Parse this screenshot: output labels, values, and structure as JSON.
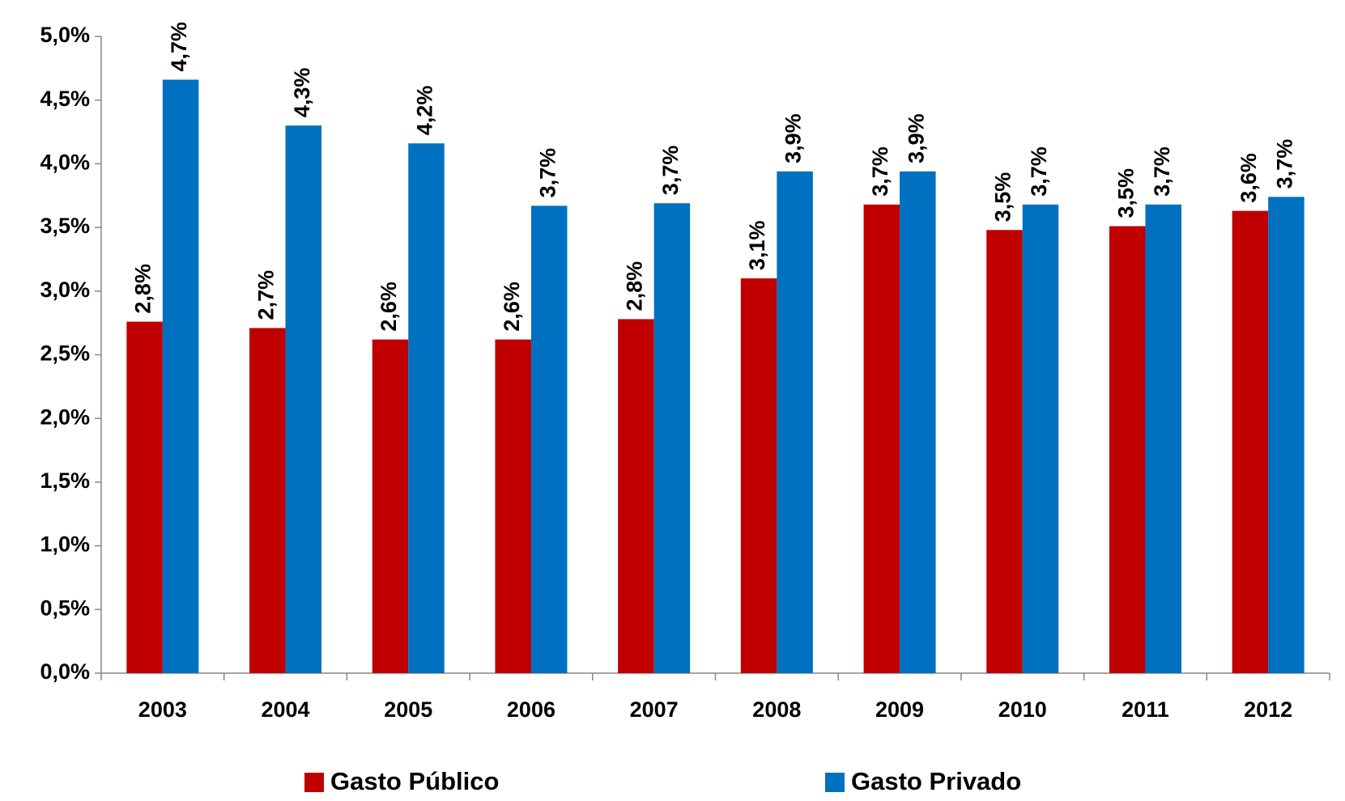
{
  "chart_data": {
    "type": "bar",
    "categories": [
      "2003",
      "2004",
      "2005",
      "2006",
      "2007",
      "2008",
      "2009",
      "2010",
      "2011",
      "2012"
    ],
    "series": [
      {
        "name": "Gasto Público",
        "color": "#c00000",
        "values": [
          2.76,
          2.71,
          2.62,
          2.62,
          2.78,
          3.1,
          3.68,
          3.48,
          3.51,
          3.63
        ],
        "value_labels": [
          "2,8%",
          "2,7%",
          "2,6%",
          "2,6%",
          "2,8%",
          "3,1%",
          "3,7%",
          "3,5%",
          "3,5%",
          "3,6%"
        ]
      },
      {
        "name": "Gasto Privado",
        "color": "#0070c0",
        "values": [
          4.66,
          4.3,
          4.16,
          3.67,
          3.69,
          3.94,
          3.94,
          3.68,
          3.68,
          3.74
        ],
        "value_labels": [
          "4,7%",
          "4,3%",
          "4,2%",
          "3,7%",
          "3,7%",
          "3,9%",
          "3,9%",
          "3,7%",
          "3,7%",
          "3,7%"
        ]
      }
    ],
    "ylim": [
      0,
      5
    ],
    "yticks": [
      {
        "value": 0,
        "label": "0,0%"
      },
      {
        "value": 0.5,
        "label": "0,5%"
      },
      {
        "value": 1,
        "label": "1,0%"
      },
      {
        "value": 1.5,
        "label": "1,5%"
      },
      {
        "value": 2,
        "label": "2,0%"
      },
      {
        "value": 2.5,
        "label": "2,5%"
      },
      {
        "value": 3,
        "label": "3,0%"
      },
      {
        "value": 3.5,
        "label": "3,5%"
      },
      {
        "value": 4,
        "label": "4,0%"
      },
      {
        "value": 4.5,
        "label": "4,5%"
      },
      {
        "value": 5,
        "label": "5,0%"
      }
    ],
    "grid": false,
    "legend": "bottom"
  }
}
